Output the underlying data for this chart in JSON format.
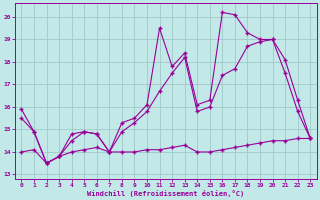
{
  "xlabel": "Windchill (Refroidissement éolien,°C)",
  "bg_color": "#c2e8e8",
  "grid_color": "#a0c8c8",
  "line_color": "#990099",
  "xlim": [
    -0.5,
    23.5
  ],
  "ylim": [
    12.8,
    20.6
  ],
  "yticks": [
    13,
    14,
    15,
    16,
    17,
    18,
    19,
    20
  ],
  "xticks": [
    0,
    1,
    2,
    3,
    4,
    5,
    6,
    7,
    8,
    9,
    10,
    11,
    12,
    13,
    14,
    15,
    16,
    17,
    18,
    19,
    20,
    21,
    22,
    23
  ],
  "series1_x": [
    0,
    1,
    2,
    3,
    4,
    5,
    6,
    7,
    8,
    9,
    10,
    11,
    12,
    13,
    14,
    15,
    16,
    17,
    18,
    19,
    20,
    21,
    22,
    23
  ],
  "series1_y": [
    15.9,
    14.9,
    13.5,
    13.8,
    14.8,
    14.9,
    14.8,
    14.0,
    15.3,
    15.5,
    16.1,
    19.5,
    17.8,
    18.4,
    16.1,
    16.3,
    20.2,
    20.1,
    19.3,
    19.0,
    19.0,
    18.1,
    16.3,
    14.6
  ],
  "series2_x": [
    0,
    1,
    2,
    3,
    4,
    5,
    6,
    7,
    8,
    9,
    10,
    11,
    12,
    13,
    14,
    15,
    16,
    17,
    18,
    19,
    20,
    21,
    22,
    23
  ],
  "series2_y": [
    15.5,
    14.9,
    13.5,
    13.8,
    14.5,
    14.9,
    14.8,
    14.0,
    14.9,
    15.3,
    15.8,
    16.7,
    17.5,
    18.2,
    15.8,
    16.0,
    17.4,
    17.7,
    18.7,
    18.9,
    19.0,
    17.5,
    15.8,
    14.6
  ],
  "series3_x": [
    0,
    1,
    2,
    3,
    4,
    5,
    6,
    7,
    8,
    9,
    10,
    11,
    12,
    13,
    14,
    15,
    16,
    17,
    18,
    19,
    20,
    21,
    22,
    23
  ],
  "series3_y": [
    14.0,
    14.1,
    13.5,
    13.8,
    14.0,
    14.1,
    14.2,
    14.0,
    14.0,
    14.0,
    14.1,
    14.1,
    14.2,
    14.3,
    14.0,
    14.0,
    14.1,
    14.2,
    14.3,
    14.4,
    14.5,
    14.5,
    14.6,
    14.6
  ]
}
